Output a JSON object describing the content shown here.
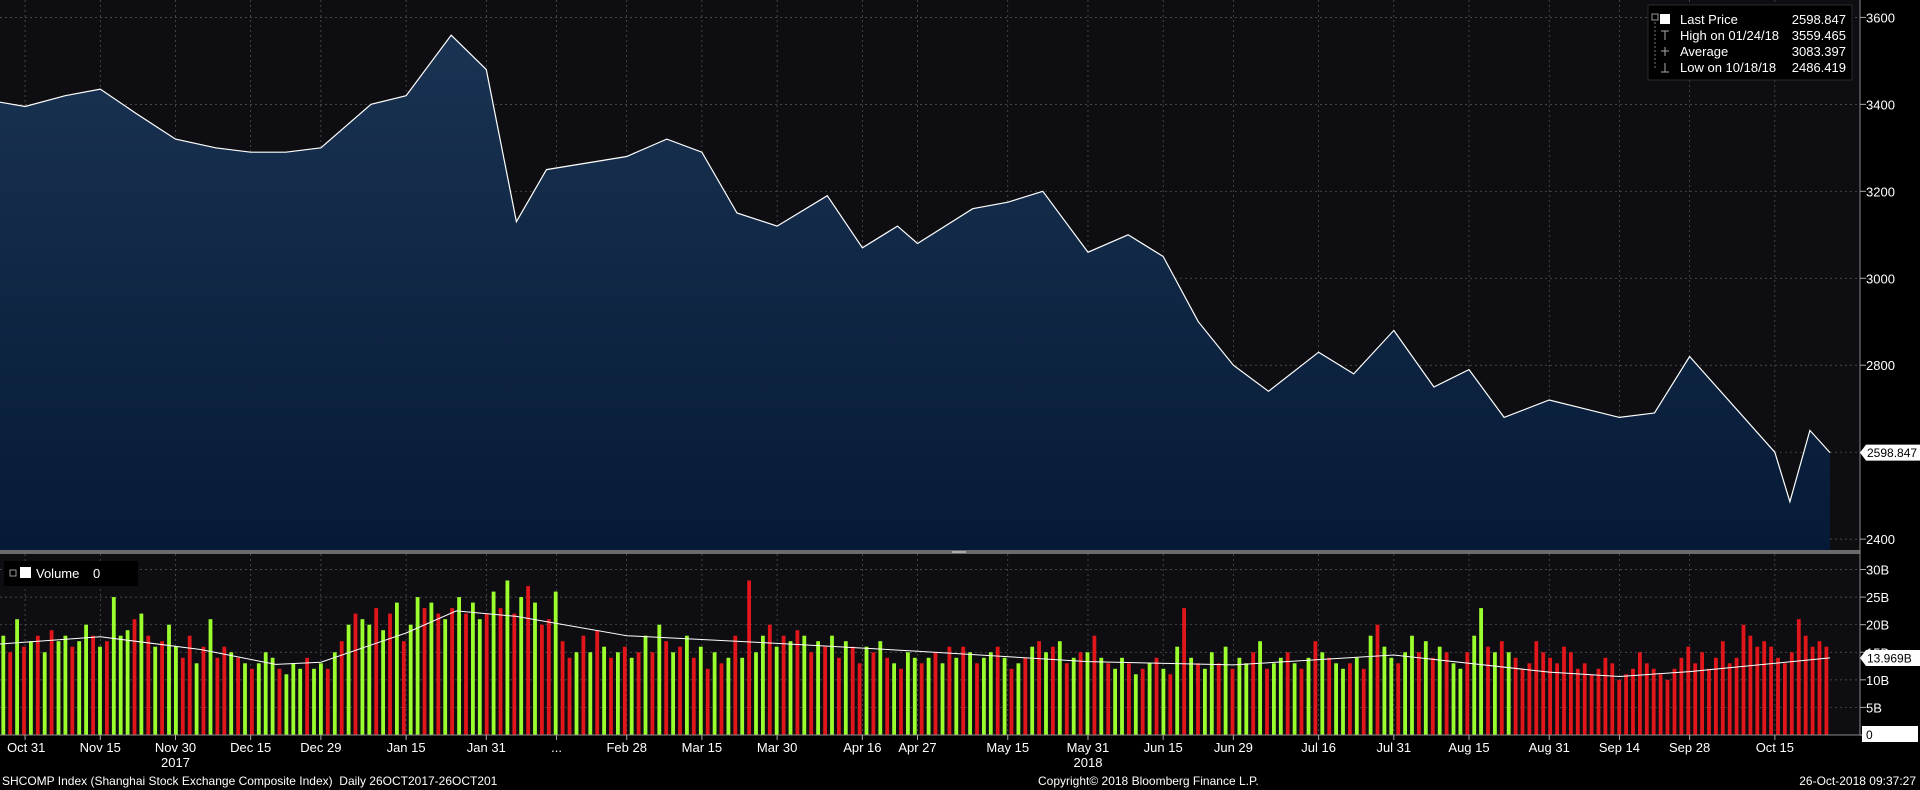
{
  "colors": {
    "price_area_top": "#1a3352",
    "price_area_bottom": "#051a36",
    "price_line": "#ffffff",
    "panel_bg": "#0e0e12",
    "grid": "#5a5a5a",
    "vol_up": "#9bff2e",
    "vol_down": "#e0161a",
    "avg_line": "#ffffff"
  },
  "footer": {
    "left": "SHCOMP Index (Shanghai Stock Exchange Composite Index)  Daily 26OCT2017-26OCT201",
    "center": "Copyright© 2018 Bloomberg Finance L.P.",
    "right": "26-Oct-2018 09:37:27"
  },
  "chart_data": [
    {
      "type": "area",
      "legend_position": "top-right",
      "legend": [
        {
          "label": "Last Price",
          "value": "2598.847",
          "marker": "square"
        },
        {
          "label": "High on 01/24/18",
          "value": "3559.465",
          "marker": "high-tick"
        },
        {
          "label": "Average",
          "value": "3083.397",
          "marker": "avg-tick"
        },
        {
          "label": "Low on 10/18/18",
          "value": "2486.419",
          "marker": "low-tick"
        }
      ],
      "y_ticks": [
        "2400",
        "2600",
        "2800",
        "3000",
        "3200",
        "3400",
        "3600"
      ],
      "ylim": [
        2375,
        3640
      ],
      "last_price_label": "2598.847",
      "last_value": 2598.847,
      "grid": true,
      "x": [
        "2017-10-26",
        "2017-10-31",
        "2017-11-08",
        "2017-11-15",
        "2017-11-22",
        "2017-11-30",
        "2017-12-08",
        "2017-12-15",
        "2017-12-22",
        "2017-12-29",
        "2018-01-08",
        "2018-01-15",
        "2018-01-24",
        "2018-01-31",
        "2018-02-06",
        "2018-02-12",
        "2018-02-28",
        "2018-03-08",
        "2018-03-15",
        "2018-03-22",
        "2018-03-30",
        "2018-04-09",
        "2018-04-16",
        "2018-04-23",
        "2018-04-27",
        "2018-05-08",
        "2018-05-15",
        "2018-05-22",
        "2018-05-31",
        "2018-06-08",
        "2018-06-15",
        "2018-06-22",
        "2018-06-29",
        "2018-07-06",
        "2018-07-16",
        "2018-07-23",
        "2018-07-31",
        "2018-08-08",
        "2018-08-15",
        "2018-08-22",
        "2018-08-31",
        "2018-09-07",
        "2018-09-14",
        "2018-09-21",
        "2018-09-28",
        "2018-10-15",
        "2018-10-18",
        "2018-10-22",
        "2018-10-26"
      ],
      "y": [
        3405,
        3395,
        3420,
        3435,
        3380,
        3320,
        3300,
        3290,
        3290,
        3300,
        3400,
        3420,
        3559,
        3480,
        3130,
        3250,
        3280,
        3320,
        3290,
        3150,
        3120,
        3190,
        3070,
        3120,
        3080,
        3160,
        3175,
        3200,
        3060,
        3100,
        3050,
        2900,
        2800,
        2740,
        2830,
        2780,
        2880,
        2750,
        2790,
        2680,
        2720,
        2700,
        2680,
        2690,
        2820,
        2600,
        2486,
        2650,
        2599
      ],
      "x_tick_labels": [
        "Oct 31",
        "Nov 15",
        "Nov 30",
        "Dec 15",
        "Dec 29",
        "Jan 15",
        "Jan 31",
        "...",
        "Feb 28",
        "Mar 15",
        "Mar 30",
        "Apr 16",
        "Apr 27",
        "May 15",
        "May 31",
        "Jun 15",
        "Jun 29",
        "Jul 16",
        "Jul 31",
        "Aug 15",
        "Aug 31",
        "Sep 14",
        "Sep 28",
        "Oct 15"
      ],
      "x_tick_dates": [
        "2017-10-31",
        "2017-11-15",
        "2017-11-30",
        "2017-12-15",
        "2017-12-29",
        "2018-01-15",
        "2018-01-31",
        "2018-02-14",
        "2018-02-28",
        "2018-03-15",
        "2018-03-30",
        "2018-04-16",
        "2018-04-27",
        "2018-05-15",
        "2018-05-31",
        "2018-06-15",
        "2018-06-29",
        "2018-07-16",
        "2018-07-31",
        "2018-08-15",
        "2018-08-31",
        "2018-09-14",
        "2018-09-28",
        "2018-10-15"
      ],
      "year_labels": [
        {
          "text": "2017",
          "date": "2017-11-30"
        },
        {
          "text": "2018",
          "date": "2018-05-31"
        }
      ]
    },
    {
      "type": "bar",
      "legend": [
        {
          "label": "Volume",
          "value": "0"
        }
      ],
      "y_ticks": [
        "0",
        "5B",
        "10B",
        "15B",
        "20B",
        "25B",
        "30B"
      ],
      "ylim": [
        0,
        31
      ],
      "last_value_label": "13.969B",
      "last_value": 13.969,
      "avg_series": {
        "x": [
          "2017-10-26",
          "2017-11-15",
          "2017-12-05",
          "2017-12-20",
          "2017-12-29",
          "2018-01-15",
          "2018-01-25",
          "2018-02-06",
          "2018-02-28",
          "2018-03-30",
          "2018-04-27",
          "2018-05-31",
          "2018-06-29",
          "2018-07-31",
          "2018-08-31",
          "2018-09-14",
          "2018-09-28",
          "2018-10-26"
        ],
        "y": [
          16.5,
          17.8,
          15.5,
          12.8,
          13.2,
          18.5,
          22.5,
          21.5,
          18,
          16.6,
          15.2,
          13.3,
          12.7,
          14.5,
          11.4,
          10.6,
          11.5,
          13.97
        ]
      },
      "bars": {
        "colors": [
          "u",
          "d",
          "u",
          "d",
          "u",
          "d",
          "u",
          "d",
          "u",
          "u",
          "d",
          "u",
          "u",
          "d",
          "u",
          "d",
          "u",
          "u",
          "u",
          "d",
          "u",
          "d",
          "u",
          "d",
          "u",
          "u",
          "d",
          "d",
          "u",
          "d",
          "u",
          "d",
          "d",
          "u",
          "d",
          "u",
          "d",
          "u",
          "u",
          "u",
          "d",
          "u",
          "u",
          "u",
          "d",
          "u",
          "u",
          "d",
          "u",
          "d",
          "u",
          "d",
          "u",
          "u",
          "d",
          "u",
          "d",
          "u",
          "d",
          "u",
          "u",
          "d",
          "u",
          "d",
          "u",
          "d",
          "u",
          "d",
          "u",
          "u",
          "d",
          "u",
          "d",
          "u",
          "d",
          "u",
          "d",
          "u",
          "d",
          "d",
          "u",
          "d",
          "d",
          "u",
          "d",
          "u",
          "d",
          "u",
          "d",
          "u",
          "d",
          "u",
          "d",
          "u",
          "d",
          "u",
          "d",
          "u",
          "d",
          "u",
          "d",
          "u",
          "d",
          "u",
          "d",
          "u",
          "d",
          "u",
          "d",
          "u",
          "u",
          "d",
          "u",
          "d",
          "u",
          "d",
          "u",
          "d",
          "u",
          "d",
          "u",
          "d",
          "u",
          "d",
          "d",
          "u",
          "d",
          "u",
          "d",
          "u",
          "d",
          "u",
          "u",
          "d",
          "u",
          "d",
          "u",
          "d",
          "u",
          "d",
          "u",
          "d",
          "u",
          "u",
          "d",
          "u",
          "d",
          "u",
          "d",
          "u",
          "d",
          "u",
          "d",
          "u",
          "d",
          "u",
          "d",
          "u",
          "d",
          "u",
          "d",
          "u",
          "u",
          "d",
          "u",
          "d",
          "u",
          "d",
          "u",
          "d",
          "u",
          "d",
          "u",
          "d",
          "u",
          "u",
          "d",
          "u",
          "d",
          "u",
          "u",
          "d",
          "u",
          "d",
          "u",
          "u",
          "d",
          "u",
          "d",
          "u",
          "d",
          "u",
          "d",
          "u",
          "u",
          "d",
          "u",
          "d",
          "u",
          "d",
          "u",
          "u",
          "d",
          "u",
          "u",
          "d",
          "u",
          "d",
          "u",
          "d",
          "u",
          "u",
          "d",
          "u",
          "u",
          "d",
          "u",
          "d",
          "u",
          "d",
          "d"
        ],
        "values": [
          18,
          15,
          21,
          16,
          17,
          18,
          15,
          19,
          17,
          18,
          16,
          17,
          20,
          18,
          16,
          17,
          25,
          18,
          19,
          21,
          22,
          18,
          16,
          17,
          20,
          16,
          14,
          18,
          13,
          16,
          21,
          14,
          16,
          15,
          14,
          13,
          12,
          13,
          15,
          14,
          12,
          11,
          13,
          12,
          14,
          12,
          13,
          12,
          15,
          17,
          20,
          22,
          21,
          20,
          23,
          19,
          22,
          24,
          17,
          20,
          25,
          23,
          24,
          22,
          21,
          23,
          25,
          22,
          24,
          21,
          22,
          26,
          23,
          28,
          22,
          25,
          27,
          24,
          20,
          21,
          26,
          17,
          14,
          15,
          18,
          15,
          19,
          16,
          14,
          15,
          16,
          14,
          15,
          18,
          15,
          20,
          17,
          15,
          16,
          18,
          14,
          16,
          12,
          15,
          13,
          14,
          18,
          14,
          28,
          15,
          18,
          20,
          16,
          18,
          17,
          19,
          18,
          15,
          17,
          16,
          18,
          14,
          17,
          16,
          13,
          16,
          15,
          17,
          14,
          13,
          12,
          15,
          14,
          13,
          14,
          15,
          13,
          16,
          14,
          16,
          15,
          13,
          14,
          15,
          16,
          14,
          12,
          13,
          14,
          16,
          17,
          15,
          16,
          17,
          13,
          14,
          15,
          15,
          18,
          14,
          13,
          12,
          14,
          13,
          11,
          12,
          13,
          14,
          12,
          11,
          16,
          23,
          14,
          13,
          12,
          15,
          13,
          16,
          12,
          14,
          13,
          15,
          17,
          12,
          13,
          14,
          15,
          13,
          12,
          14,
          17,
          15,
          14,
          13,
          12,
          13,
          14,
          12,
          18,
          20,
          16,
          14,
          13,
          15,
          18,
          15,
          17,
          14,
          16,
          15,
          13,
          12,
          15,
          18,
          23,
          16,
          15,
          17,
          15,
          14,
          12,
          13,
          17,
          15,
          14,
          13,
          16,
          15,
          12,
          13,
          11,
          12,
          14,
          13,
          10,
          11,
          12,
          15,
          13,
          12,
          11,
          10,
          12,
          14,
          16,
          13,
          15,
          12,
          14,
          17,
          13,
          14,
          20,
          18,
          16,
          17,
          16,
          14,
          13,
          15,
          21,
          18,
          16,
          17,
          16
        ]
      }
    }
  ]
}
